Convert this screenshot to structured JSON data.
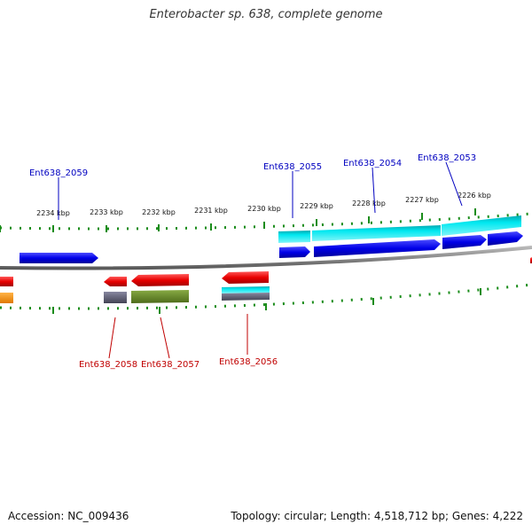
{
  "title": "Enterobacter sp. 638, complete genome",
  "accession_text": "Accession: NC_009436",
  "topology_text": "Topology: circular; Length: 4,518,712 bp; Genes: 4,222",
  "colors": {
    "forward_gene": "#0000e8",
    "reverse_gene": "#e80000",
    "forward_cds_band": "#00d8e0",
    "reverse_misc": "#ff8c00",
    "reverse_green": "#6b8e23",
    "reverse_gray": "#666677",
    "backbone": "#8c8c8c",
    "tick": "#1a8c1a",
    "forward_label": "#0000c0",
    "reverse_label": "#c00000"
  },
  "scale": {
    "unit": "kbp",
    "ticks": [
      "2234 kbp",
      "2233 kbp",
      "2232 kbp",
      "2231 kbp",
      "2230 kbp",
      "2229 kbp",
      "2228 kbp",
      "2227 kbp",
      "2226 kbp"
    ]
  },
  "genes_forward": [
    "Ent638_2059",
    "Ent638_2055",
    "Ent638_2054",
    "Ent638_2053"
  ],
  "genes_reverse": [
    "Ent638_2058",
    "Ent638_2057",
    "Ent638_2056"
  ]
}
